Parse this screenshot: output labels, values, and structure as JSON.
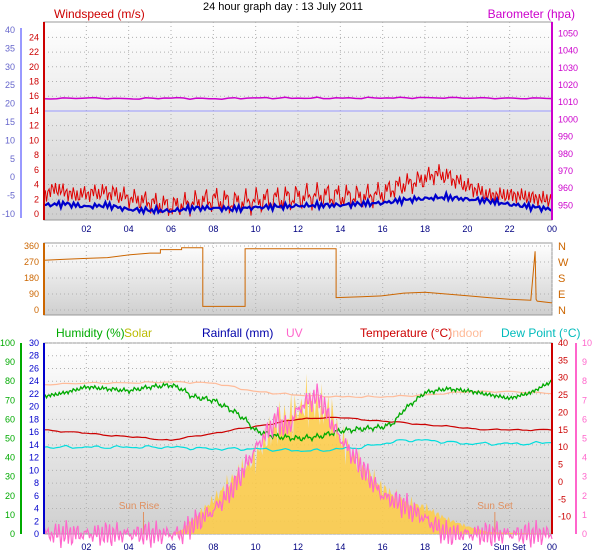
{
  "chart_data": [
    {
      "id": "wind",
      "type": "line",
      "title": "24 hour graph day : 13 July 2011",
      "left_axis_label": "Windspeed (m/s)",
      "right_axis_label": "Barometer (hpa)",
      "x_ticks": [
        "02",
        "04",
        "06",
        "08",
        "10",
        "12",
        "14",
        "16",
        "18",
        "20",
        "22",
        "00"
      ],
      "y_far_left_ticks": [
        "40",
        "35",
        "30",
        "25",
        "20",
        "15",
        "10",
        "5",
        "0",
        "-5",
        "-10"
      ],
      "y_left_ticks": [
        "24",
        "22",
        "20",
        "18",
        "16",
        "14",
        "12",
        "10",
        "8",
        "6",
        "4",
        "2",
        "0"
      ],
      "y_left_range": [
        0,
        25
      ],
      "y_right_ticks": [
        "1050",
        "1040",
        "1030",
        "1020",
        "1010",
        "1000",
        "990",
        "980",
        "970",
        "960",
        "950"
      ],
      "y_right_range": [
        945,
        1052
      ],
      "x_hours_range": [
        0,
        24
      ],
      "series": [
        {
          "name": "Windspeed (m/s)",
          "color": "#e00000",
          "x": [
            0,
            0.5,
            1,
            1.5,
            2,
            3,
            4,
            5,
            6,
            7,
            8,
            9,
            10,
            11,
            12,
            13,
            14,
            15,
            16,
            16.5,
            17,
            17.5,
            18,
            18.5,
            19,
            19.5,
            20,
            20.5,
            21,
            22,
            23,
            23.5,
            24
          ],
          "values": [
            2.5,
            3.5,
            3,
            2.5,
            2.8,
            3,
            2.2,
            1.6,
            1,
            1.5,
            2,
            1.5,
            1.8,
            2,
            2.3,
            2.5,
            2.4,
            2.3,
            2.8,
            3.5,
            4,
            4.3,
            4.8,
            5.5,
            5.2,
            4.5,
            3.8,
            3.2,
            2.5,
            2.6,
            2.3,
            2,
            2
          ]
        },
        {
          "name": "Wind average",
          "color": "#0000cc",
          "x": [
            0,
            1,
            2,
            3,
            4,
            5,
            6,
            7,
            8,
            9,
            10,
            11,
            12,
            13,
            14,
            15,
            16,
            17,
            18,
            19,
            20,
            21,
            22,
            23,
            24
          ],
          "values": [
            1.2,
            1.4,
            1,
            1.2,
            0.6,
            0.5,
            0.4,
            0.8,
            0.8,
            0.7,
            0.9,
            1,
            1.1,
            1.2,
            1.2,
            1.4,
            1.5,
            1.9,
            2.1,
            2.3,
            2,
            1.8,
            1.3,
            1,
            0.6
          ]
        },
        {
          "name": "Barometer (hpa)",
          "color": "#cc00cc",
          "x": [
            0,
            2,
            4,
            6,
            8,
            10,
            12,
            14,
            16,
            18,
            20,
            22,
            24
          ],
          "values": [
            1012,
            1012.5,
            1012,
            1012.5,
            1012,
            1012.5,
            1012.4,
            1012.4,
            1012.5,
            1012.6,
            1012.5,
            1012.3,
            1012.3
          ]
        }
      ],
      "reference_line": {
        "color": "#9999ff",
        "value": 14
      }
    },
    {
      "id": "direction",
      "type": "line",
      "y_left_ticks": [
        "360",
        "270",
        "180",
        "90",
        "0"
      ],
      "y_range": [
        0,
        360
      ],
      "y_right_labels": [
        "N",
        "W",
        "S",
        "E",
        "N"
      ],
      "series": [
        {
          "name": "Wind direction",
          "color": "#cc6600",
          "x": [
            0,
            1,
            2,
            3,
            4,
            5,
            5.5,
            5.5,
            6.5,
            6.5,
            7.5,
            7.5,
            9.5,
            9.5,
            13.8,
            13.8,
            15,
            16,
            17,
            18,
            19,
            20,
            21,
            22,
            23,
            23.2,
            23.25,
            23.3,
            24
          ],
          "values": [
            280,
            285,
            290,
            295,
            310,
            320,
            320,
            340,
            340,
            350,
            350,
            20,
            20,
            345,
            345,
            70,
            75,
            80,
            95,
            100,
            90,
            80,
            70,
            60,
            55,
            330,
            60,
            50,
            40
          ]
        }
      ]
    },
    {
      "id": "weather",
      "type": "line",
      "legend": [
        {
          "label": "Humidity (%)",
          "color": "#00aa00"
        },
        {
          "label": "Solar",
          "color": "#bbbb00"
        },
        {
          "label": "Rainfall (mm)",
          "color": "#0000aa"
        },
        {
          "label": "UV",
          "color": "#ff66cc"
        },
        {
          "label": "Temperature (°C)",
          "color": "#cc0000"
        },
        {
          "label": "Indoor",
          "color": "#ffbb99"
        },
        {
          "label": "Dew Point (°C)",
          "color": "#00dddd"
        }
      ],
      "humidity_ticks": [
        "100",
        "90",
        "80",
        "70",
        "60",
        "50",
        "40",
        "30",
        "20",
        "10",
        "0"
      ],
      "humidity_range": [
        0,
        100
      ],
      "rain_ticks": [
        "30",
        "28",
        "26",
        "24",
        "22",
        "20",
        "18",
        "16",
        "14",
        "12",
        "10",
        "8",
        "6",
        "4",
        "2",
        "0"
      ],
      "temp_ticks": [
        "40",
        "35",
        "30",
        "25",
        "20",
        "15",
        "10",
        "5",
        "0",
        "-5",
        "-10"
      ],
      "temp_range": [
        -15,
        40
      ],
      "uv_ticks": [
        "10",
        "9",
        "8",
        "7",
        "6",
        "5",
        "4",
        "3",
        "2",
        "1",
        "0"
      ],
      "uv_range": [
        0,
        10
      ],
      "x_ticks": [
        "02",
        "04",
        "06",
        "08",
        "10",
        "12",
        "14",
        "16",
        "18",
        "20",
        "Sun Set",
        "00"
      ],
      "annotations": {
        "sun_rise": "Sun Rise",
        "sun_set": "Sun Set",
        "sun_rise_hour": 4.7,
        "sun_set_hour": 21.3
      },
      "series": [
        {
          "name": "Humidity (%)",
          "color": "#00aa00",
          "x": [
            0,
            1,
            2,
            3,
            4,
            5,
            6,
            6.5,
            7,
            8,
            9,
            9.5,
            10,
            11,
            12,
            13,
            14,
            15,
            16,
            16.5,
            17,
            18,
            19,
            20,
            21,
            22,
            23,
            24
          ],
          "values": [
            72,
            74,
            77,
            76,
            75,
            77,
            78,
            76,
            72,
            70,
            64,
            60,
            54,
            51,
            50,
            51,
            54,
            55,
            56,
            58,
            65,
            74,
            76,
            75,
            73,
            71,
            74,
            80
          ]
        },
        {
          "name": "Temperature (°C)",
          "color": "#cc0000",
          "x": [
            0,
            1,
            2,
            3,
            4,
            5,
            6,
            7,
            8,
            9,
            10,
            11,
            12,
            13,
            14,
            15,
            16,
            17,
            18,
            19,
            20,
            21,
            22,
            23,
            24
          ],
          "values": [
            15,
            14.5,
            14,
            13.5,
            13,
            12.5,
            12,
            13,
            14,
            15,
            16,
            17,
            18,
            18.5,
            18.5,
            18,
            17.5,
            17,
            16.5,
            16,
            15.5,
            15,
            15,
            15,
            15
          ]
        },
        {
          "name": "Dew Point (°C)",
          "color": "#00dddd",
          "x": [
            0,
            2,
            4,
            6,
            8,
            10,
            12,
            13,
            14,
            15,
            16,
            17,
            18,
            19,
            20,
            21,
            22,
            23,
            24
          ],
          "values": [
            10,
            10,
            10,
            10,
            9.5,
            9.5,
            9,
            9,
            9.5,
            10,
            11,
            12,
            12,
            11.5,
            11,
            11,
            11,
            11,
            11.5
          ]
        },
        {
          "name": "Indoor",
          "color": "#ffbb99",
          "x": [
            0,
            2,
            4,
            6,
            8,
            10,
            12,
            14,
            16,
            18,
            20,
            22,
            24
          ],
          "values": [
            28,
            28.5,
            28.5,
            28.8,
            28.5,
            26,
            25,
            24.5,
            24.5,
            25,
            26,
            26,
            25.5
          ]
        },
        {
          "name": "Solar",
          "color": "#ffcc44",
          "x": [
            0,
            6,
            6.5,
            7,
            8,
            9,
            10,
            10.5,
            11,
            11.5,
            12,
            12.5,
            13,
            13.5,
            14,
            15,
            16,
            17,
            18,
            19,
            20,
            21,
            24
          ],
          "values": [
            0,
            0,
            2,
            7,
            18,
            30,
            40,
            50,
            58,
            62,
            64,
            70,
            66,
            65,
            50,
            35,
            24,
            17,
            14,
            8,
            4,
            1,
            0
          ]
        },
        {
          "name": "UV",
          "color": "#ff66cc",
          "x": [
            0,
            6.5,
            7,
            8,
            9,
            10,
            11,
            11.5,
            12,
            12.5,
            13,
            13.5,
            14,
            15,
            16,
            17,
            18,
            19,
            24
          ],
          "values": [
            0,
            0,
            0.5,
            1.2,
            2.5,
            4.5,
            6,
            5.5,
            6.5,
            7,
            7.2,
            6,
            5,
            3.5,
            2,
            1.5,
            0.8,
            0,
            0
          ]
        }
      ]
    }
  ]
}
